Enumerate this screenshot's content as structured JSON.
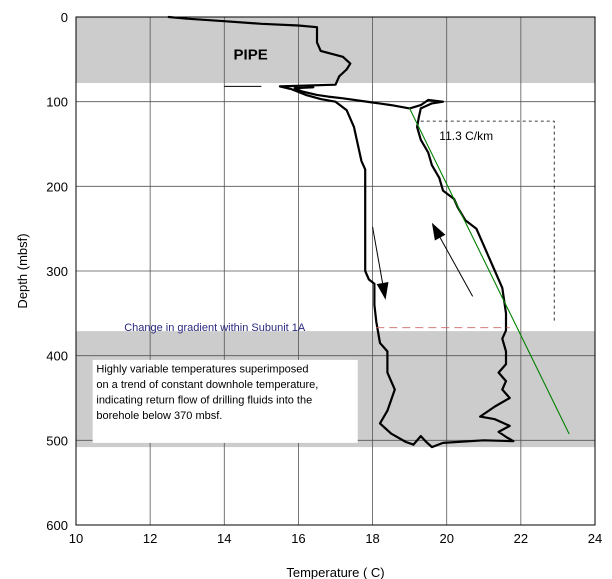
{
  "chart_data": {
    "type": "line",
    "xlabel": "Temperature  ( C)",
    "ylabel": "Depth (mbsf)",
    "xlim": [
      10,
      24
    ],
    "ylim": [
      0,
      600
    ],
    "y_inverted": true,
    "grid": true,
    "x_ticks": [
      10,
      12,
      14,
      16,
      18,
      20,
      22,
      24
    ],
    "y_ticks": [
      0,
      100,
      200,
      300,
      400,
      500,
      600
    ],
    "shaded_depth_bands": [
      {
        "from": 0,
        "to": 78,
        "color": "#cccccc"
      },
      {
        "from": 371,
        "to": 508,
        "color": "#cccccc"
      }
    ],
    "series": [
      {
        "role": "downhole",
        "color": "#000000",
        "points": [
          [
            12.5,
            0
          ],
          [
            13.0,
            2
          ],
          [
            14.0,
            5
          ],
          [
            15.0,
            8
          ],
          [
            16.0,
            10
          ],
          [
            16.5,
            12
          ],
          [
            16.5,
            30
          ],
          [
            16.6,
            40
          ],
          [
            17.2,
            47
          ],
          [
            17.4,
            55
          ],
          [
            17.3,
            62
          ],
          [
            17.1,
            70
          ],
          [
            17.0,
            80
          ],
          [
            15.5,
            82
          ],
          [
            15.8,
            85
          ],
          [
            16.2,
            92
          ],
          [
            16.6,
            97
          ],
          [
            17.0,
            100
          ],
          [
            17.3,
            110
          ],
          [
            17.5,
            130
          ],
          [
            17.6,
            150
          ],
          [
            17.7,
            170
          ],
          [
            17.8,
            180
          ],
          [
            17.8,
            200
          ],
          [
            17.8,
            250
          ],
          [
            17.8,
            300
          ],
          [
            17.9,
            310
          ],
          [
            18.05,
            315
          ],
          [
            18.05,
            340
          ],
          [
            18.1,
            360
          ],
          [
            18.2,
            385
          ],
          [
            18.4,
            395
          ],
          [
            18.4,
            420
          ],
          [
            18.6,
            440
          ],
          [
            18.4,
            465
          ],
          [
            18.2,
            480
          ],
          [
            18.5,
            492
          ],
          [
            18.9,
            502
          ],
          [
            19.1,
            505
          ]
        ]
      },
      {
        "role": "uphole",
        "color": "#000000",
        "points": [
          [
            19.1,
            505
          ],
          [
            19.3,
            495
          ],
          [
            19.45,
            502
          ],
          [
            19.6,
            508
          ],
          [
            19.9,
            503
          ],
          [
            21.0,
            500
          ],
          [
            21.8,
            501
          ],
          [
            21.6,
            496
          ],
          [
            21.4,
            490
          ],
          [
            21.7,
            483
          ],
          [
            21.3,
            475
          ],
          [
            20.9,
            472
          ],
          [
            21.3,
            460
          ],
          [
            21.7,
            450
          ],
          [
            21.5,
            440
          ],
          [
            21.6,
            430
          ],
          [
            21.4,
            420
          ],
          [
            21.6,
            410
          ],
          [
            21.6,
            395
          ],
          [
            21.5,
            380
          ],
          [
            21.6,
            370
          ],
          [
            21.6,
            350
          ],
          [
            21.5,
            320
          ],
          [
            21.3,
            300
          ],
          [
            21.0,
            270
          ],
          [
            20.8,
            250
          ],
          [
            20.5,
            240
          ],
          [
            20.3,
            225
          ],
          [
            20.2,
            215
          ],
          [
            19.9,
            205
          ],
          [
            19.8,
            190
          ],
          [
            19.6,
            175
          ],
          [
            19.5,
            160
          ],
          [
            19.3,
            145
          ],
          [
            19.2,
            130
          ],
          [
            19.25,
            118
          ],
          [
            19.3,
            108
          ],
          [
            19.6,
            102
          ],
          [
            19.9,
            100
          ],
          [
            19.5,
            98
          ],
          [
            19.3,
            104
          ],
          [
            19.0,
            108
          ],
          [
            18.5,
            104
          ],
          [
            18.0,
            101
          ],
          [
            17.2,
            96
          ],
          [
            16.8,
            94
          ],
          [
            16.5,
            92
          ],
          [
            16.1,
            88
          ],
          [
            15.9,
            84
          ],
          [
            16.4,
            83
          ]
        ]
      },
      {
        "role": "gradient-fit",
        "color": "#008000",
        "points": [
          [
            19.0,
            108
          ],
          [
            23.3,
            492
          ]
        ]
      }
    ],
    "annotations": {
      "band_label": "PIPE",
      "gradient_label": "11.3   C/km",
      "change_label": "Change in gradient within Subunit 1A",
      "note_lines": [
        "Highly variable temperatures superimposed",
        "on a trend of constant downhole temperature,",
        "indicating return flow of drilling fluids into the",
        "borehole below 370 mbsf."
      ]
    }
  }
}
